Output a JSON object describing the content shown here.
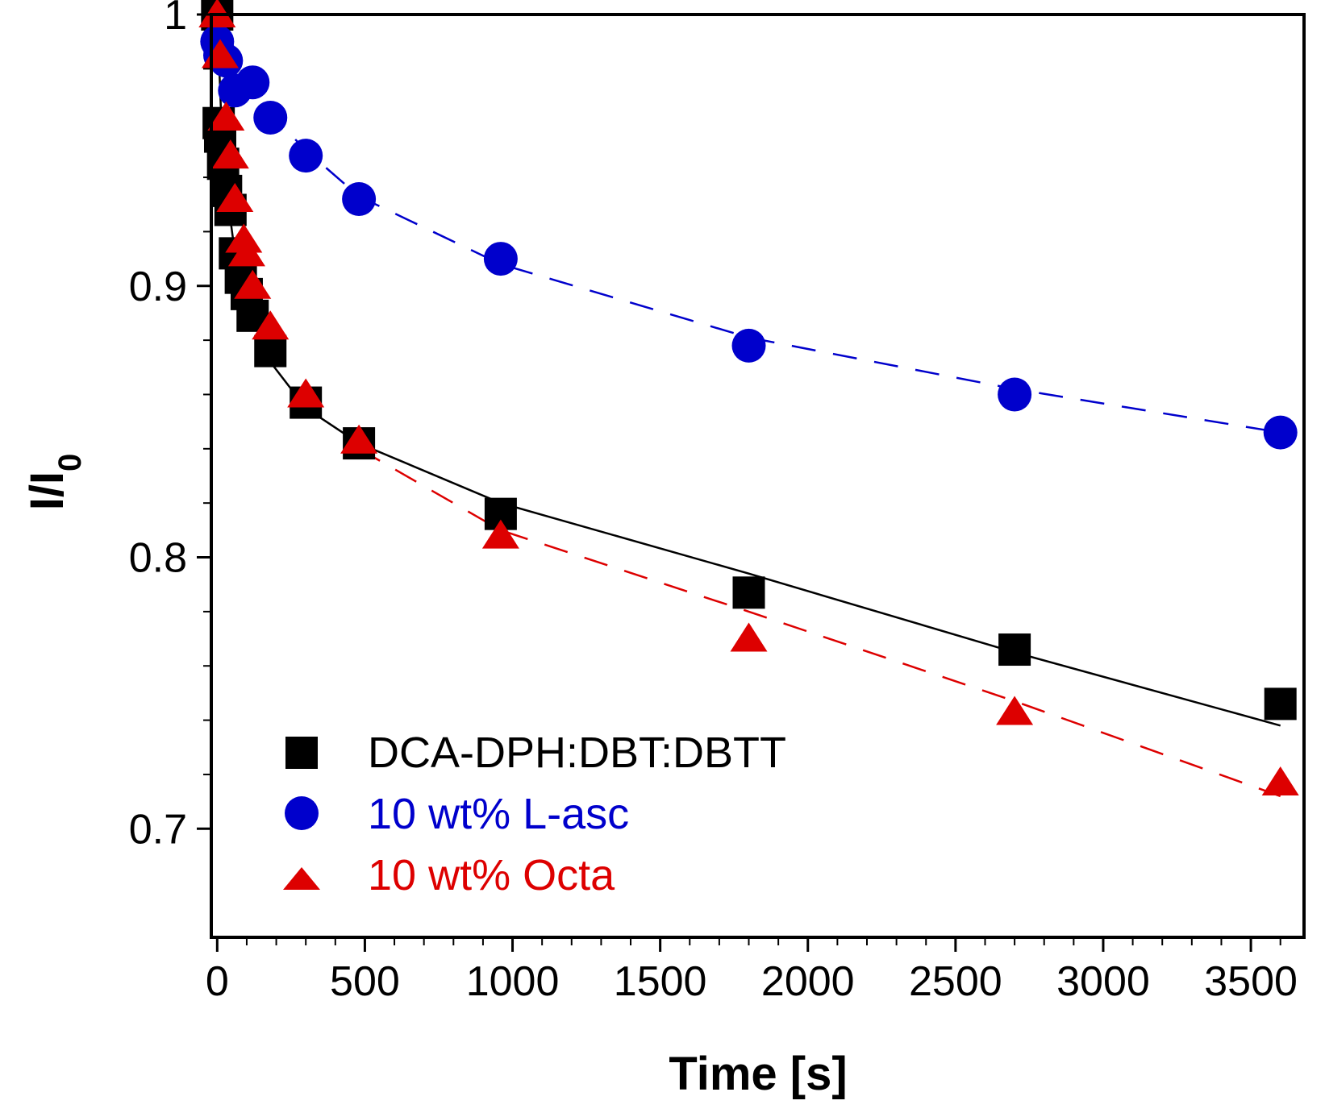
{
  "chart_data": {
    "type": "scatter",
    "title": "",
    "xlabel": "Time [s]",
    "ylabel_main": "I/I",
    "ylabel_sub": "0",
    "xlim": [
      -20,
      3680
    ],
    "ylim": [
      0.66,
      1.0
    ],
    "x_ticks": [
      0,
      500,
      1000,
      1500,
      2000,
      2500,
      3000,
      3500
    ],
    "x_tick_labels": [
      "0",
      "500",
      "1000",
      "1500",
      "2000",
      "2500",
      "3000",
      "3500"
    ],
    "x_minor_step": 100,
    "y_ticks": [
      0.7,
      0.8,
      0.9,
      1.0
    ],
    "y_tick_labels": [
      "0.7",
      "0.8",
      "0.9",
      "1"
    ],
    "y_minor_step": 0.02,
    "legend_position": "bottom-left",
    "series": [
      {
        "name": "DCA-DPH:DBT:DBTT",
        "color": "#000000",
        "marker": "square",
        "x": [
          0,
          5,
          10,
          20,
          30,
          45,
          60,
          80,
          100,
          120,
          180,
          300,
          480,
          960,
          1800,
          2700,
          3600
        ],
        "y": [
          1.0,
          0.96,
          0.955,
          0.945,
          0.935,
          0.928,
          0.912,
          0.903,
          0.897,
          0.889,
          0.876,
          0.857,
          0.842,
          0.816,
          0.787,
          0.766,
          0.746
        ],
        "fit_x": [
          0,
          20,
          60,
          120,
          180,
          300,
          480,
          960,
          1800,
          2700,
          3600
        ],
        "fit_y": [
          1.0,
          0.945,
          0.912,
          0.889,
          0.872,
          0.855,
          0.842,
          0.82,
          0.794,
          0.765,
          0.738
        ]
      },
      {
        "name": "10 wt% L-asc",
        "color": "#0000cc",
        "marker": "circle",
        "x": [
          0,
          10,
          30,
          60,
          120,
          180,
          300,
          480,
          960,
          1800,
          2700,
          3600
        ],
        "y": [
          0.99,
          0.985,
          0.983,
          0.972,
          0.975,
          0.962,
          0.948,
          0.932,
          0.91,
          0.878,
          0.86,
          0.846
        ],
        "fit_x": [
          0,
          120,
          300,
          480,
          960,
          1800,
          2700,
          3600
        ],
        "fit_y": [
          0.99,
          0.97,
          0.95,
          0.933,
          0.908,
          0.881,
          0.862,
          0.846
        ],
        "fit_dashed": true
      },
      {
        "name": "10 wt% Octa",
        "color": "#dd0000",
        "marker": "triangle",
        "x": [
          0,
          10,
          30,
          45,
          60,
          90,
          100,
          120,
          180,
          300,
          480,
          960,
          1800,
          2700,
          3600
        ],
        "y": [
          1.0,
          0.985,
          0.962,
          0.948,
          0.932,
          0.917,
          0.912,
          0.9,
          0.885,
          0.86,
          0.843,
          0.808,
          0.77,
          0.743,
          0.717
        ],
        "fit_x": [
          480,
          960,
          1800,
          2700,
          3600
        ],
        "fit_y": [
          0.84,
          0.81,
          0.78,
          0.747,
          0.712
        ],
        "fit_dashed": true
      }
    ]
  }
}
